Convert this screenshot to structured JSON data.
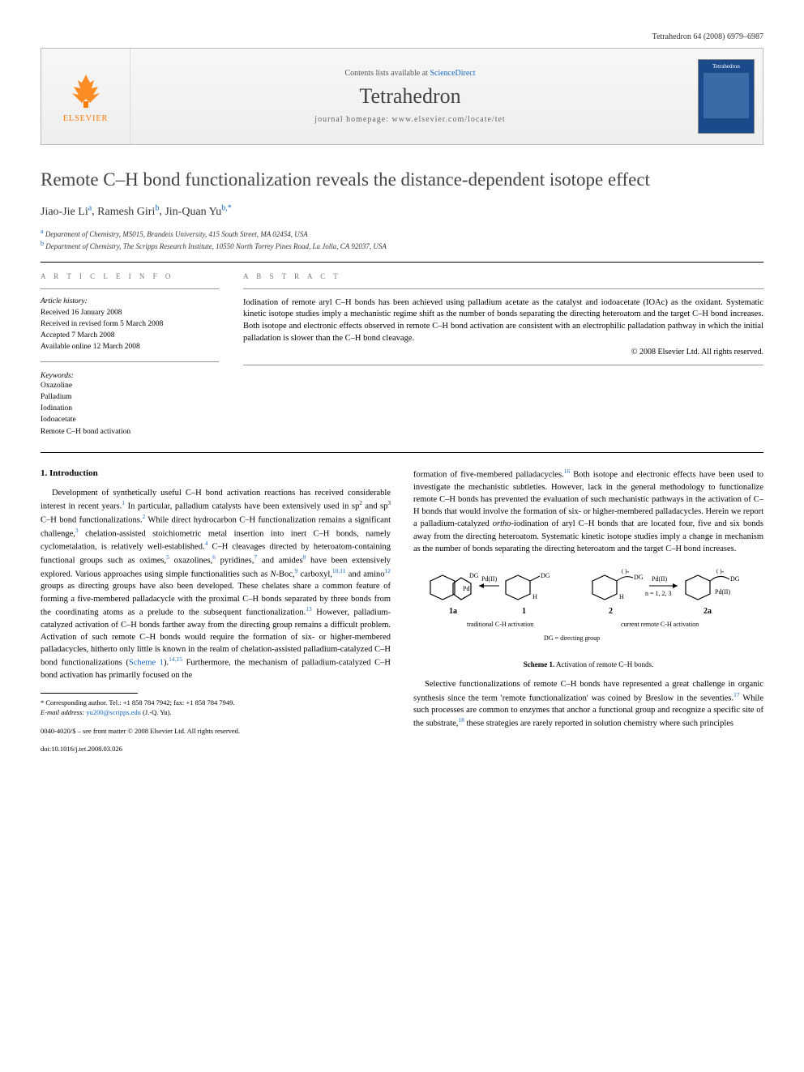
{
  "running_head": "Tetrahedron 64 (2008) 6979–6987",
  "banner": {
    "contents_prefix": "Contents lists available at ",
    "contents_link": "ScienceDirect",
    "journal_name": "Tetrahedron",
    "homepage_label": "journal homepage: ",
    "homepage_url": "www.elsevier.com/locate/tet",
    "publisher_label": "ELSEVIER",
    "cover_title": "Tetrahedron"
  },
  "title": "Remote C–H bond functionalization reveals the distance-dependent isotope effect",
  "authors": [
    {
      "name": "Jiao-Jie Li",
      "aff": "a",
      "corr": false
    },
    {
      "name": "Ramesh Giri",
      "aff": "b",
      "corr": false
    },
    {
      "name": "Jin-Quan Yu",
      "aff": "b",
      "corr": true
    }
  ],
  "affiliations": [
    {
      "label": "a",
      "text": "Department of Chemistry, MS015, Brandeis University, 415 South Street, MA 02454, USA"
    },
    {
      "label": "b",
      "text": "Department of Chemistry, The Scripps Research Institute, 10550 North Torrey Pines Road, La Jolla, CA 92037, USA"
    }
  ],
  "article_info_label": "A R T I C L E   I N F O",
  "abstract_label": "A B S T R A C T",
  "history_label": "Article history:",
  "history": [
    "Received 16 January 2008",
    "Received in revised form 5 March 2008",
    "Accepted 7 March 2008",
    "Available online 12 March 2008"
  ],
  "keywords_label": "Keywords:",
  "keywords": [
    "Oxazoline",
    "Palladium",
    "Iodination",
    "Iodoacetate",
    "Remote C–H bond activation"
  ],
  "abstract": "Iodination of remote aryl C–H bonds has been achieved using palladium acetate as the catalyst and iodoacetate (IOAc) as the oxidant. Systematic kinetic isotope studies imply a mechanistic regime shift as the number of bonds separating the directing heteroatom and the target C–H bond increases. Both isotope and electronic effects observed in remote C–H bond activation are consistent with an electrophilic palladation pathway in which the initial palladation is slower than the C–H bond cleavage.",
  "copyright": "© 2008 Elsevier Ltd. All rights reserved.",
  "section1_heading": "1. Introduction",
  "col_left_para": "Development of synthetically useful C–H bond activation reactions has received considerable interest in recent years.{1} In particular, palladium catalysts have been extensively used in sp{2} and sp{3} C–H bond functionalizations.{2} While direct hydrocarbon C–H functionalization remains a significant challenge,{3} chelation-assisted stoichiometric metal insertion into inert C–H bonds, namely cyclometalation, is relatively well-established.{4} C–H cleavages directed by heteroatom-containing functional groups such as oximes,{5} oxazolines,{6} pyridines,{7} and amides{8} have been extensively explored. Various approaches using simple functionalities such as N-Boc,{9} carboxyl,{10,11} and amino{12} groups as directing groups have also been developed. These chelates share a common feature of forming a five-membered palladacycle with the proximal C–H bonds separated by three bonds from the coordinating atoms as a prelude to the subsequent functionalization.{13} However, palladium-catalyzed activation of C–H bonds farther away from the directing group remains a difficult problem. Activation of such remote C–H bonds would require the formation of six- or higher-membered palladacycles, hitherto only little is known in the realm of chelation-assisted palladium-catalyzed C–H bond functionalizations (Scheme 1).{14,15} Furthermore, the mechanism of palladium-catalyzed C–H bond activation has primarily focused on the",
  "col_right_para1": "formation of five-membered palladacycles.{16} Both isotope and electronic effects have been used to investigate the mechanistic subtleties. However, lack in the general methodology to functionalize remote C–H bonds has prevented the evaluation of such mechanistic pathways in the activation of C–H bonds that would involve the formation of six- or higher-membered palladacycles. Herein we report a palladium-catalyzed ortho-iodination of aryl C–H bonds that are located four, five and six bonds away from the directing heteroatom. Systematic kinetic isotope studies imply a change in mechanism as the number of bonds separating the directing heteroatom and the target C–H bond increases.",
  "scheme1": {
    "labels": {
      "left_cpd": "1a",
      "mid_left": "1",
      "mid_right": "2",
      "right_cpd": "2a"
    },
    "reagent": "Pd(II)",
    "n_label": "n = 1, 2, 3",
    "trad_label": "traditional C-H activation",
    "curr_label": "current remote C-H activation",
    "dg_label": "DG = directing group",
    "caption_bold": "Scheme 1.",
    "caption_text": " Activation of remote C–H bonds."
  },
  "col_right_para2": "Selective functionalizations of remote C–H bonds have represented a great challenge in organic synthesis since the term 'remote functionalization' was coined by Breslow in the seventies.{17} While such processes are common to enzymes that anchor a functional group and recognize a specific site of the substrate,{18} these strategies are rarely reported in solution chemistry where such principles",
  "footnote": {
    "corr_label": "* Corresponding author. Tel.: +1 858 784 7942; fax: +1 858 784 7949.",
    "email_label": "E-mail address:",
    "email": "yu200@scripps.edu",
    "email_suffix": " (J.-Q. Yu)."
  },
  "doi": {
    "front_matter": "0040-4020/$ – see front matter © 2008 Elsevier Ltd. All rights reserved.",
    "doi": "doi:10.1016/j.tet.2008.03.026"
  },
  "colors": {
    "link": "#1768c4",
    "orange": "#ff7a00",
    "banner_cover": "#1b4a8a",
    "text": "#000000",
    "gray": "#777777"
  }
}
